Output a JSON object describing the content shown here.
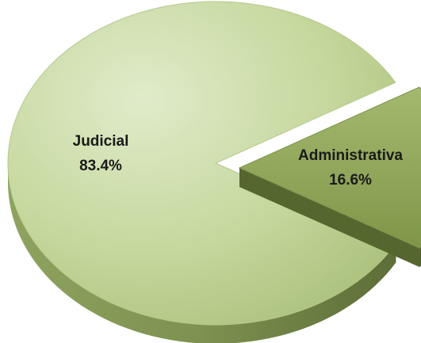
{
  "chart_data": {
    "type": "pie",
    "title": "",
    "slices": [
      {
        "label": "Judicial",
        "value": 83.4,
        "display": "83.4%",
        "color": "#c3d69b"
      },
      {
        "label": "Administrativa",
        "value": 16.6,
        "display": "16.6%",
        "color": "#8fa65a"
      }
    ],
    "exploded": "Administrativa",
    "style": "3d"
  }
}
